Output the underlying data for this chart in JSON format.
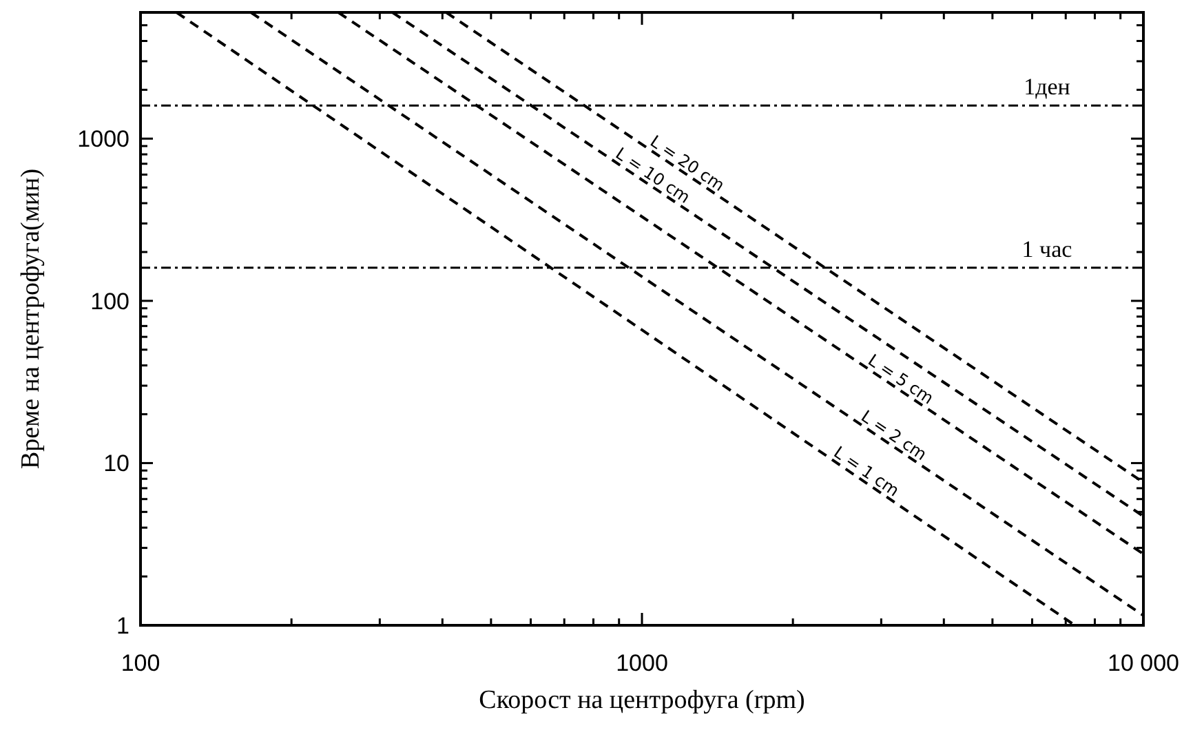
{
  "chart_data": {
    "type": "line",
    "xlabel": "Скорост на центрофуга (rpm)",
    "ylabel": "Време на центрофуга(мин)",
    "log": "xy",
    "line_style": "dashed",
    "marker": "none",
    "grid": false,
    "xlim": [
      100,
      10000
    ],
    "ylim": [
      1,
      6000
    ],
    "xticks": [
      100,
      {
        "value": 200,
        "label": null
      },
      {
        "value": 300,
        "label": null
      },
      {
        "value": 400,
        "label": null
      },
      {
        "value": 500,
        "label": null
      },
      {
        "value": 600,
        "label": null
      },
      {
        "value": 700,
        "label": null
      },
      {
        "value": 800,
        "label": null
      },
      {
        "value": 900,
        "label": null
      },
      1000,
      {
        "value": 2000,
        "label": null
      },
      {
        "value": 3000,
        "label": null
      },
      {
        "value": 4000,
        "label": null
      },
      {
        "value": 5000,
        "label": null
      },
      {
        "value": 6000,
        "label": null
      },
      {
        "value": 7000,
        "label": null
      },
      {
        "value": 8000,
        "label": null
      },
      {
        "value": 9000,
        "label": null
      },
      {
        "value": 10000,
        "label": "10 000"
      }
    ],
    "yticks": [
      1,
      {
        "value": 2,
        "label": null
      },
      {
        "value": 3,
        "label": null
      },
      {
        "value": 4,
        "label": null
      },
      {
        "value": 5,
        "label": null
      },
      {
        "value": 6,
        "label": null
      },
      {
        "value": 7,
        "label": null
      },
      {
        "value": 8,
        "label": null
      },
      {
        "value": 9,
        "label": null
      },
      10,
      {
        "value": 20,
        "label": null
      },
      {
        "value": 30,
        "label": null
      },
      {
        "value": 40,
        "label": null
      },
      {
        "value": 50,
        "label": null
      },
      {
        "value": 60,
        "label": null
      },
      {
        "value": 70,
        "label": null
      },
      {
        "value": 80,
        "label": null
      },
      {
        "value": 90,
        "label": null
      },
      100,
      {
        "value": 200,
        "label": null
      },
      {
        "value": 300,
        "label": null
      },
      {
        "value": 400,
        "label": null
      },
      {
        "value": 500,
        "label": null
      },
      {
        "value": 600,
        "label": null
      },
      {
        "value": 700,
        "label": null
      },
      {
        "value": 800,
        "label": null
      },
      {
        "value": 900,
        "label": null
      },
      1000,
      {
        "value": 2000,
        "label": null
      },
      {
        "value": 3000,
        "label": null
      },
      {
        "value": 4000,
        "label": null
      },
      {
        "value": 5000,
        "label": null
      }
    ],
    "series": [
      {
        "name": "L = 1 cm",
        "color": "#000000",
        "x": [
          118,
          7300
        ],
        "values": [
          6000,
          1
        ]
      },
      {
        "name": "L = 2 cm",
        "color": "#000000",
        "x": [
          166,
          10000
        ],
        "values": [
          6000,
          1.15
        ]
      },
      {
        "name": "L = 5 cm",
        "color": "#000000",
        "x": [
          248,
          10000
        ],
        "values": [
          6000,
          2.75
        ]
      },
      {
        "name": "L = 10 cm",
        "color": "#000000",
        "x": [
          318,
          10000
        ],
        "values": [
          6000,
          4.7
        ]
      },
      {
        "name": "L = 20 cm",
        "color": "#000000",
        "x": [
          407,
          10000
        ],
        "values": [
          6000,
          7.6
        ]
      }
    ],
    "ref_lines": [
      {
        "axis": "y",
        "value": 1600,
        "label": "1ден",
        "color": "#000000"
      },
      {
        "axis": "y",
        "value": 160,
        "label": "1 час",
        "color": "#000000"
      }
    ]
  }
}
